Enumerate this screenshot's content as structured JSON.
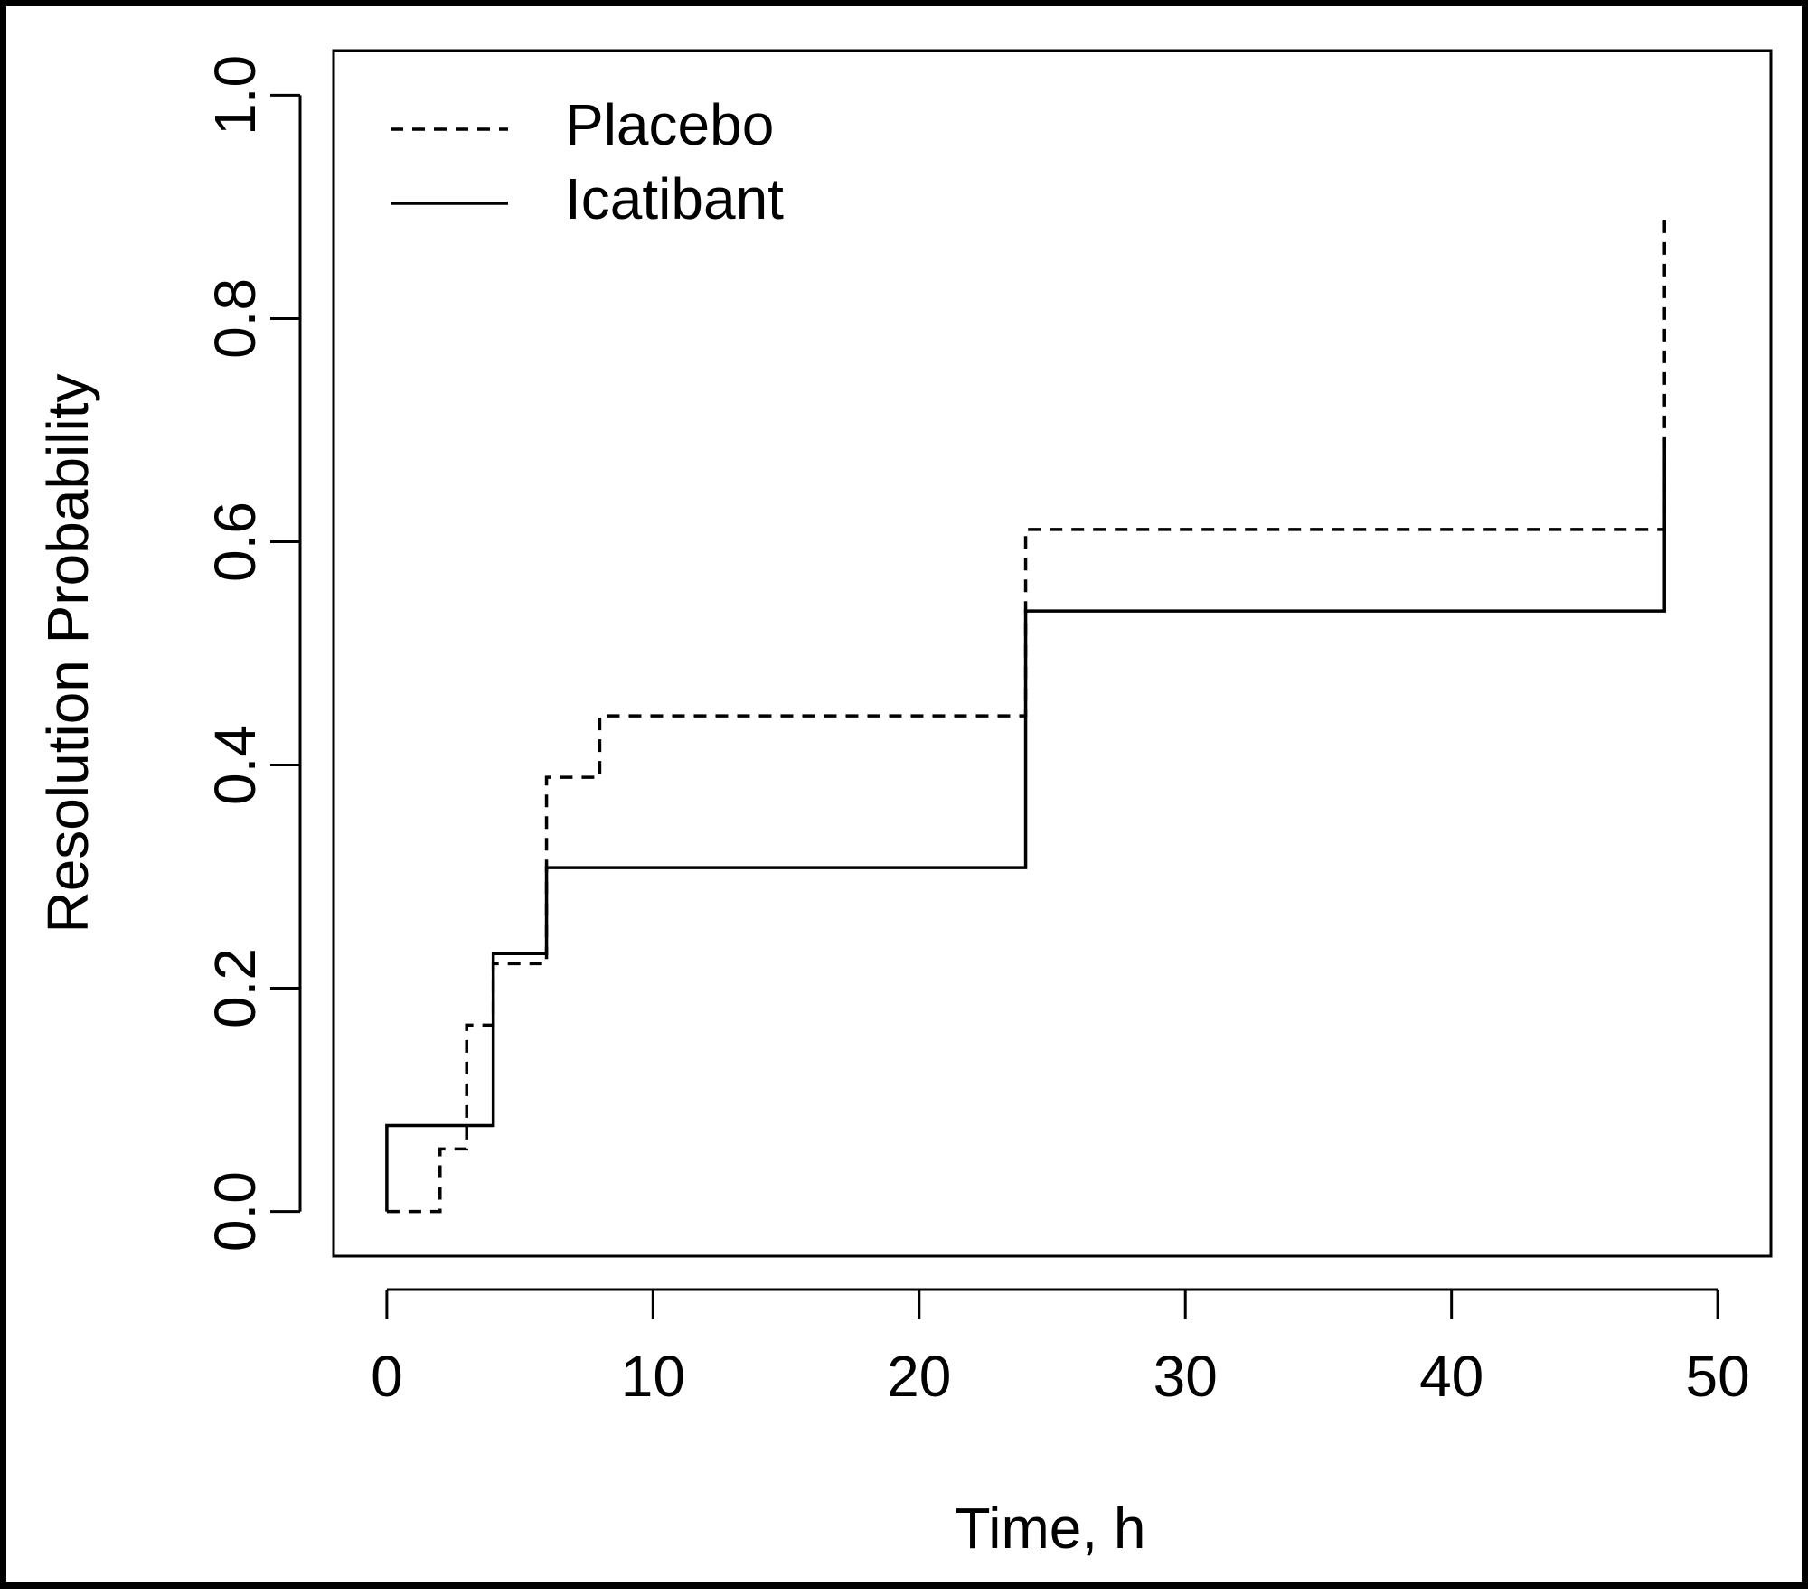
{
  "chart_data": {
    "type": "line",
    "step": true,
    "title": "",
    "xlabel": "Time, h",
    "ylabel": "Resolution Probability",
    "xlim": [
      -2,
      52
    ],
    "ylim": [
      -0.04,
      1.04
    ],
    "xticks": [
      0,
      10,
      20,
      30,
      40,
      50
    ],
    "xtick_labels": [
      "0",
      "10",
      "20",
      "30",
      "40",
      "50"
    ],
    "yticks": [
      0.0,
      0.2,
      0.4,
      0.6,
      0.8,
      1.0
    ],
    "ytick_labels": [
      "0.0",
      "0.2",
      "0.4",
      "0.6",
      "0.8",
      "1.0"
    ],
    "grid": false,
    "legend_position": "top-left",
    "series": [
      {
        "name": "Placebo",
        "line_style": "dashed",
        "color": "#000000",
        "x": [
          0,
          2,
          3,
          4,
          6,
          8,
          24,
          48
        ],
        "y": [
          0.0,
          0.056,
          0.167,
          0.222,
          0.389,
          0.444,
          0.611,
          0.889
        ]
      },
      {
        "name": "Icatibant",
        "line_style": "solid",
        "color": "#000000",
        "x": [
          0,
          4,
          6,
          24,
          48
        ],
        "y": [
          0.077,
          0.231,
          0.308,
          0.538,
          0.692
        ]
      }
    ]
  }
}
